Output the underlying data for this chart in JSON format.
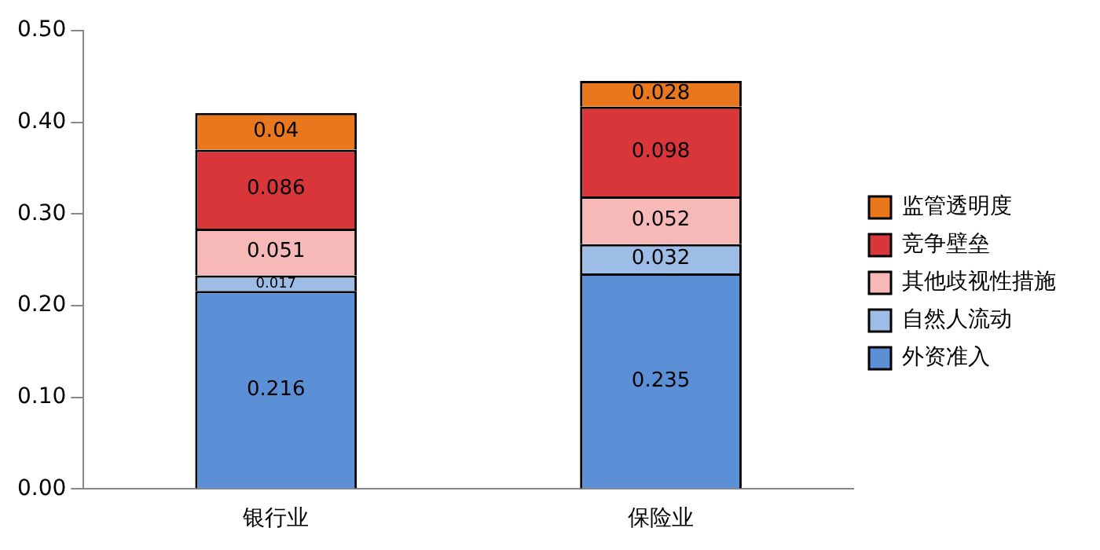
{
  "chart_data": {
    "type": "bar",
    "stacked": true,
    "categories": [
      "银行业",
      "保险业"
    ],
    "series": [
      {
        "name": "外资准入",
        "color": "#5b8fd6",
        "values": [
          0.216,
          0.235
        ]
      },
      {
        "name": "自然人流动",
        "color": "#9dbde6",
        "values": [
          0.017,
          0.032
        ]
      },
      {
        "name": "其他歧视性措施",
        "color": "#f7b8b8",
        "values": [
          0.051,
          0.052
        ]
      },
      {
        "name": "竞争壁垒",
        "color": "#d9363a",
        "values": [
          0.086,
          0.098
        ]
      },
      {
        "name": "监管透明度",
        "color": "#e8771e",
        "values": [
          0.04,
          0.028
        ]
      }
    ],
    "ylim": [
      0,
      0.5
    ],
    "yticks": [
      {
        "value": 0,
        "label": "0.00"
      },
      {
        "value": 0.1,
        "label": "0.10"
      },
      {
        "value": 0.2,
        "label": "0.20"
      },
      {
        "value": 0.3,
        "label": "0.30"
      },
      {
        "value": 0.4,
        "label": "0.40"
      },
      {
        "value": 0.5,
        "label": "0.50"
      }
    ],
    "data_labels": true,
    "legend": "right",
    "grid": false
  }
}
